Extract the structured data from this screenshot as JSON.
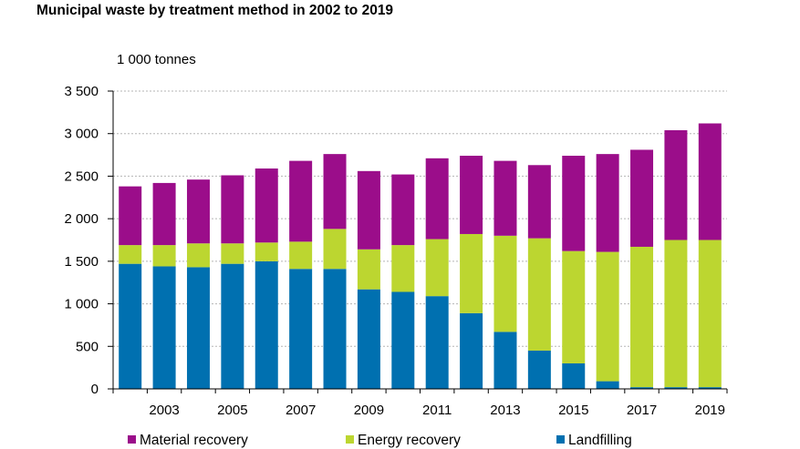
{
  "chart_data": {
    "type": "bar",
    "stacked": true,
    "title": "Municipal waste by treatment method in 2002 to 2019",
    "unit_label": "1 000 tonnes",
    "xlabel": "",
    "ylabel": "",
    "ylim": [
      0,
      3500
    ],
    "yticks": [
      0,
      500,
      1000,
      1500,
      2000,
      2500,
      3000,
      3500
    ],
    "ytick_labels": [
      "0",
      "500",
      "1 000",
      "1 500",
      "2 000",
      "2 500",
      "3 000",
      "3 500"
    ],
    "categories": [
      "2002",
      "2003",
      "2004",
      "2005",
      "2006",
      "2007",
      "2008",
      "2009",
      "2010",
      "2011",
      "2012",
      "2013",
      "2014",
      "2015",
      "2016",
      "2017",
      "2018",
      "2019"
    ],
    "xtick_labels": [
      "2003",
      "2005",
      "2007",
      "2009",
      "2011",
      "2013",
      "2015",
      "2017",
      "2019"
    ],
    "grid": "horizontal dashed",
    "legend_position": "bottom",
    "series": [
      {
        "name": "Landfilling",
        "color": "#0070b0",
        "values": [
          1470,
          1440,
          1430,
          1470,
          1500,
          1410,
          1410,
          1170,
          1140,
          1090,
          890,
          670,
          450,
          300,
          90,
          20,
          20,
          20
        ]
      },
      {
        "name": "Energy recovery",
        "color": "#bcd630",
        "values": [
          220,
          250,
          280,
          240,
          220,
          320,
          470,
          470,
          550,
          670,
          930,
          1130,
          1320,
          1320,
          1520,
          1650,
          1730,
          1730
        ]
      },
      {
        "name": "Material recovery",
        "color": "#9b0d8a",
        "values": [
          690,
          730,
          750,
          800,
          870,
          950,
          880,
          920,
          830,
          950,
          920,
          880,
          860,
          1120,
          1150,
          1140,
          1290,
          1370
        ]
      }
    ],
    "legend_order": [
      "Material recovery",
      "Energy recovery",
      "Landfilling"
    ]
  }
}
